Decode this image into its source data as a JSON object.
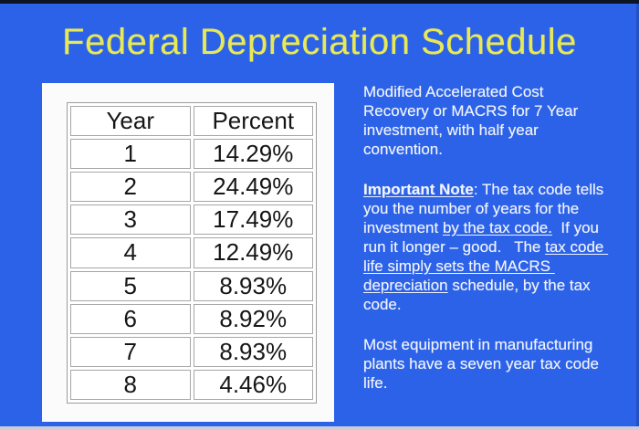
{
  "slide": {
    "title": "Federal Depreciation Schedule"
  },
  "table": {
    "headers": [
      "Year",
      "Percent"
    ],
    "rows": [
      [
        "1",
        "14.29%"
      ],
      [
        "2",
        "24.49%"
      ],
      [
        "3",
        "17.49%"
      ],
      [
        "4",
        "12.49%"
      ],
      [
        "5",
        "8.93%"
      ],
      [
        "6",
        "8.92%"
      ],
      [
        "7",
        "8.93%"
      ],
      [
        "8",
        "4.46%"
      ]
    ]
  },
  "paragraphs": [
    {
      "segments": [
        {
          "text": "Modified Accelerated Cost Recovery or MACRS for 7 Year investment, with half year convention."
        }
      ]
    },
    {
      "segments": [
        {
          "text": "Important Note",
          "bold": true,
          "underline": true
        },
        {
          "text": ": The tax code tells you the number of years for the investment "
        },
        {
          "text": "by the tax code.",
          "underline": true
        },
        {
          "text": "  If you run it longer – good.   The "
        },
        {
          "text": "tax code life simply sets the MACRS depreciation",
          "underline": true
        },
        {
          "text": " schedule, by the tax code."
        }
      ]
    },
    {
      "segments": [
        {
          "text": "Most equipment in manufacturing plants have a seven year tax code life."
        }
      ]
    }
  ],
  "colors": {
    "bg": "#2c62e8",
    "titleColor": "#e9e955",
    "noteText": "#f1f4fb",
    "cardBg": "#fbfbfb",
    "tableBorder": "#9b9b9b",
    "cellBorder": "#a6a6a6",
    "tableText": "#161616",
    "topStrip": "#0d1424",
    "bottomStrip": "#c9ced8"
  }
}
